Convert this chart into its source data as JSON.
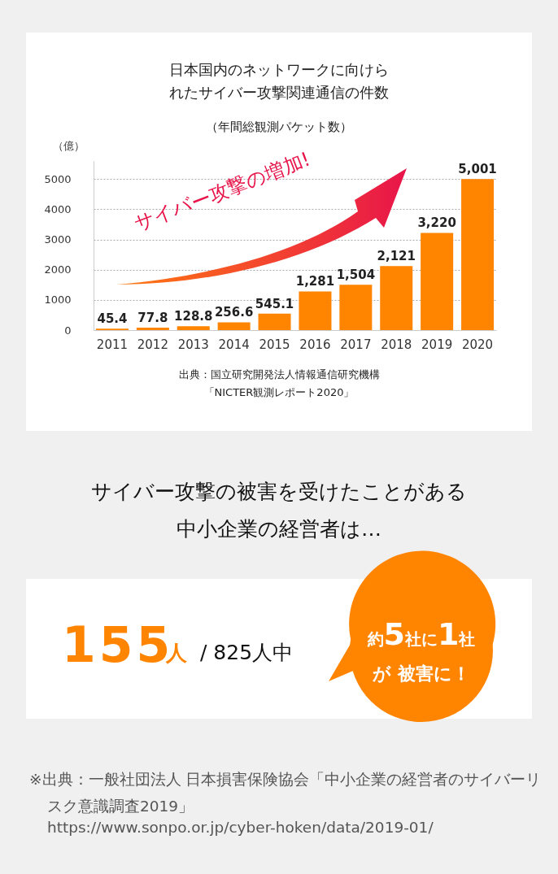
{
  "chart_data": {
    "type": "bar",
    "title": "日本国内のネットワークに向けられたサイバー攻撃関連通信の件数",
    "subtitle": "（年間総観測パケット数）",
    "ylabel": "（億）",
    "categories": [
      "2011",
      "2012",
      "2013",
      "2014",
      "2015",
      "2016",
      "2017",
      "2018",
      "2019",
      "2020"
    ],
    "values": [
      45.4,
      77.8,
      128.8,
      256.6,
      545.1,
      1281,
      1504,
      2121,
      3220,
      5001
    ],
    "value_labels": [
      "45.4",
      "77.8",
      "128.8",
      "256.6",
      "545.1",
      "1,281",
      "1,504",
      "2,121",
      "3,220",
      "5,001"
    ],
    "color": "#ff8400",
    "ylim": [
      0,
      5600
    ],
    "yticks": [
      0,
      1000,
      2000,
      3000,
      4000,
      5000
    ],
    "grid": "y",
    "annotations": [
      "サイバー攻撃の増加!",
      "出典：国立研究開発法人情報通信研究機構",
      "「NICTER観測レポート2020」",
      "サイバー攻撃の被害を受けたことがある",
      "中小企業の経営者は…",
      "155",
      "人",
      "/ 825人中",
      "約5社に1社",
      "が 被害に！",
      "※出典：一般社団法人 日本損害保険協会「中小企業の経営者のサイバーリスク意識調査2019」",
      "https://www.sonpo.or.jp/cyber-hoken/data/2019-01/"
    ]
  }
}
